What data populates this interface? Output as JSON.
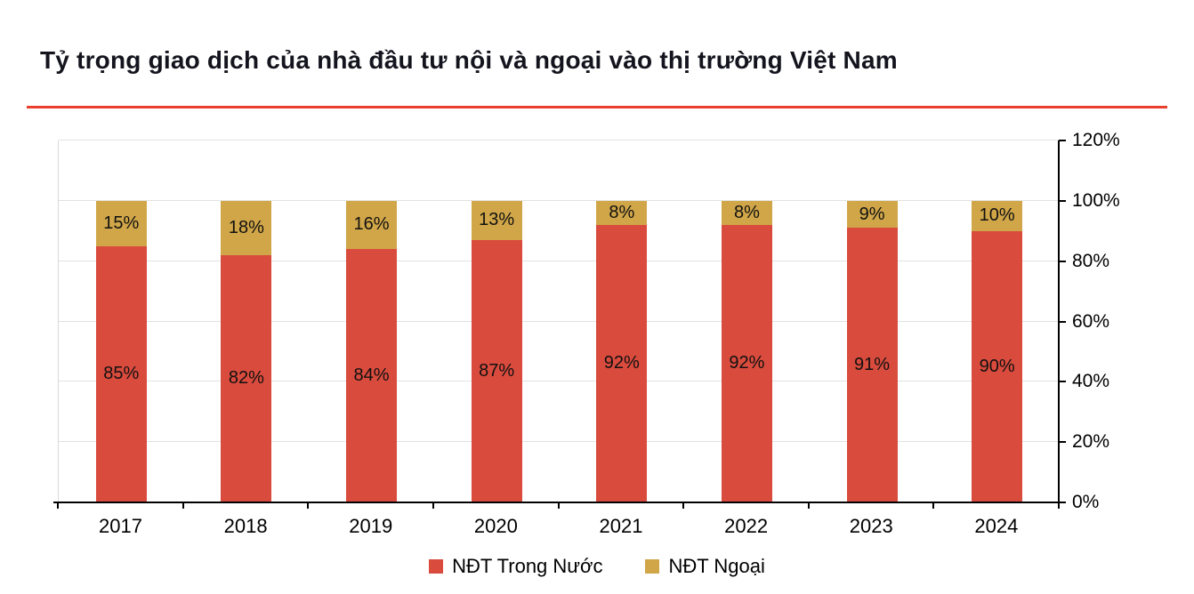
{
  "title": "Tỷ trọng giao dịch của nhà đầu tư nội và ngoại vào thị trường Việt Nam",
  "colors": {
    "accent_rule": "#e8402c",
    "domestic_bar": "#d94b3d",
    "foreign_bar": "#d0a648",
    "grid": "#e2e2e2",
    "axis": "#000000",
    "title_text": "#14141e"
  },
  "chart_data": {
    "type": "bar",
    "stacked": true,
    "title": "Tỷ trọng giao dịch của nhà đầu tư nội và ngoại vào thị trường Việt Nam",
    "categories": [
      "2017",
      "2018",
      "2019",
      "2020",
      "2021",
      "2022",
      "2023",
      "2024"
    ],
    "series": [
      {
        "name": "NĐT Trong Nước",
        "color": "#d94b3d",
        "values": [
          85,
          82,
          84,
          87,
          92,
          92,
          91,
          90
        ]
      },
      {
        "name": "NĐT Ngoại",
        "color": "#d0a648",
        "values": [
          15,
          18,
          16,
          13,
          8,
          8,
          9,
          10
        ]
      }
    ],
    "value_suffix": "%",
    "ylim": [
      0,
      120
    ],
    "ytick_step": 20,
    "ytick_labels": [
      "0%",
      "20%",
      "40%",
      "60%",
      "80%",
      "100%",
      "120%"
    ],
    "yaxis_side": "right",
    "grid": true,
    "legend_position": "bottom"
  }
}
